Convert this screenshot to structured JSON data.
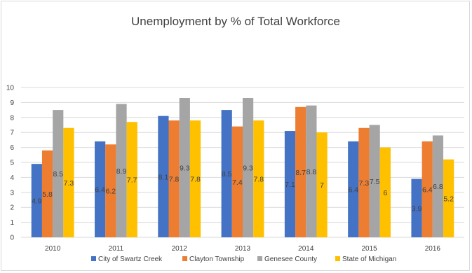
{
  "chart_data": {
    "type": "bar",
    "title": "Unemployment by % of Total Workforce",
    "categories": [
      "2010",
      "2011",
      "2012",
      "2013",
      "2014",
      "2015",
      "2016"
    ],
    "series": [
      {
        "name": "City of Swartz Creek",
        "color": "#4472c4",
        "values": [
          4.9,
          6.4,
          8.1,
          8.5,
          7.1,
          6.4,
          3.9
        ],
        "labels": [
          "4.9",
          "6.4",
          "8.1",
          "8.5",
          "7.1",
          "6.4",
          "3.9"
        ]
      },
      {
        "name": "Clayton Township",
        "color": "#ed7d31",
        "values": [
          5.8,
          6.2,
          7.8,
          7.4,
          8.7,
          7.3,
          6.4
        ],
        "labels": [
          "5.8",
          "6.2",
          "7.8",
          "7.4",
          "8.7",
          "7.3",
          "6.4"
        ]
      },
      {
        "name": "Genesee County",
        "color": "#a5a5a5",
        "values": [
          8.5,
          8.9,
          9.3,
          9.3,
          8.8,
          7.5,
          6.8
        ],
        "labels": [
          "8.5",
          "8.9",
          "9.3",
          "9.3",
          "8.8",
          "7.5",
          "6.8"
        ]
      },
      {
        "name": "State of Michigan",
        "color": "#ffc000",
        "values": [
          7.3,
          7.7,
          7.8,
          7.8,
          7.0,
          6.0,
          5.2
        ],
        "labels": [
          "7.3",
          "7.7",
          "7.8",
          "7.8",
          "7",
          "6",
          "5.2"
        ]
      }
    ],
    "y_ticks": [
      "0",
      "1",
      "2",
      "3",
      "4",
      "5",
      "6",
      "7",
      "8",
      "9",
      "10"
    ],
    "ylim": [
      0,
      10
    ],
    "grid": true,
    "legend_position": "bottom",
    "gridline_color": "#d9d9d9"
  }
}
